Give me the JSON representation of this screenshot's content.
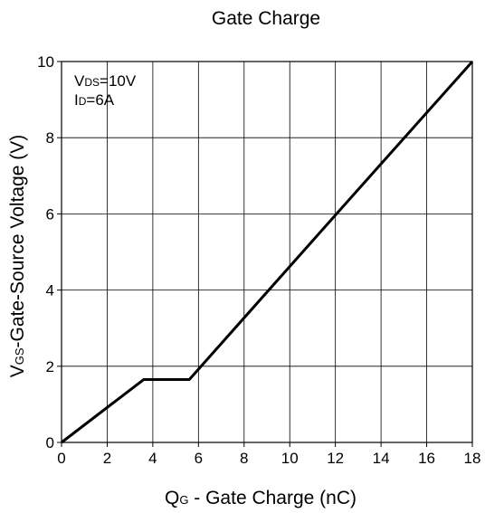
{
  "chart_data": {
    "type": "line",
    "title": "Gate Charge",
    "xlabel": {
      "main": "Q",
      "sub": "G",
      "rest": " - Gate Charge (nC)"
    },
    "ylabel": {
      "main": "V",
      "sub": "GS",
      "rest": "-Gate-Source Voltage (V)"
    },
    "xlim": [
      0,
      18
    ],
    "ylim": [
      0,
      10
    ],
    "xticks": [
      "0",
      "2",
      "4",
      "6",
      "8",
      "10",
      "12",
      "14",
      "16",
      "18"
    ],
    "yticks": [
      "0",
      "2",
      "4",
      "6",
      "8",
      "10"
    ],
    "grid": true,
    "annotations": [
      {
        "main": "V",
        "sub": "DS",
        "rest": "=10V"
      },
      {
        "main": "I",
        "sub": "D",
        "rest": "=6A"
      }
    ],
    "series": [
      {
        "x": [
          0,
          3.6,
          5.6,
          12,
          18
        ],
        "y": [
          0,
          1.65,
          1.65,
          5.97,
          10
        ]
      }
    ],
    "line_color": "#000000"
  }
}
